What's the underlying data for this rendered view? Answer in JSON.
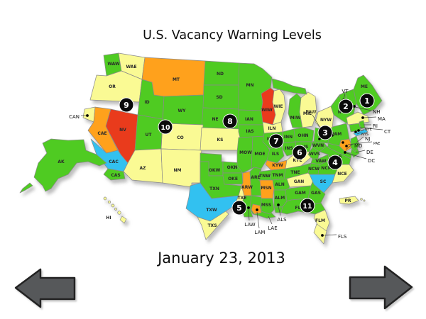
{
  "title": "U.S. Vacancy Warning Levels",
  "date": "January 23, 2013",
  "levels": {
    "green": "#4FCB20",
    "yellow": "#FAFA94",
    "orange": "#FFA11E",
    "red": "#E93A1C",
    "blue": "#33C1F0"
  },
  "map": {
    "regions": [
      {
        "code": "WAW",
        "label": "WAW",
        "level": "green"
      },
      {
        "code": "WAE",
        "label": "WAE",
        "level": "yellow"
      },
      {
        "code": "OR",
        "label": "OR",
        "level": "yellow"
      },
      {
        "code": "ID",
        "label": "ID",
        "level": "green"
      },
      {
        "code": "MT",
        "label": "MT",
        "level": "orange"
      },
      {
        "code": "WY",
        "label": "WY",
        "level": "green"
      },
      {
        "code": "ND",
        "label": "ND",
        "level": "green"
      },
      {
        "code": "SD",
        "label": "SD",
        "level": "green"
      },
      {
        "code": "NE",
        "label": "NE",
        "level": "green"
      },
      {
        "code": "CO",
        "label": "CO",
        "level": "yellow"
      },
      {
        "code": "KS",
        "label": "KS",
        "level": "yellow"
      },
      {
        "code": "NV",
        "label": "NV",
        "level": "red"
      },
      {
        "code": "UT",
        "label": "UT",
        "level": "green"
      },
      {
        "code": "CAN",
        "label": "",
        "level": "yellow"
      },
      {
        "code": "CAE",
        "label": "CAE",
        "level": "orange"
      },
      {
        "code": "CAC",
        "label": "CAC",
        "level": "blue"
      },
      {
        "code": "CAS",
        "label": "CAS",
        "level": "green"
      },
      {
        "code": "AZ",
        "label": "AZ",
        "level": "yellow"
      },
      {
        "code": "NM",
        "label": "NM",
        "level": "yellow"
      },
      {
        "code": "OKW",
        "label": "OKW",
        "level": "green"
      },
      {
        "code": "OKN",
        "label": "OKN",
        "level": "green"
      },
      {
        "code": "OKE",
        "label": "OKE",
        "level": "green"
      },
      {
        "code": "TXN",
        "label": "TXN",
        "level": "green"
      },
      {
        "code": "TXE",
        "label": "TXE",
        "level": "yellow"
      },
      {
        "code": "TXW",
        "label": "TXW",
        "level": "blue"
      },
      {
        "code": "TXS",
        "label": "TXS",
        "level": "yellow"
      },
      {
        "code": "MN",
        "label": "MN",
        "level": "green"
      },
      {
        "code": "IAN",
        "label": "IAN",
        "level": "green"
      },
      {
        "code": "IAS",
        "label": "IAS",
        "level": "green"
      },
      {
        "code": "MOW",
        "label": "MOW",
        "level": "green"
      },
      {
        "code": "MOE",
        "label": "MOE",
        "level": "green"
      },
      {
        "code": "ARW",
        "label": "ARW",
        "level": "orange"
      },
      {
        "code": "ARE",
        "label": "ARE",
        "level": "green"
      },
      {
        "code": "LAW",
        "label": "",
        "level": "green"
      },
      {
        "code": "LAE",
        "label": "",
        "level": "green"
      },
      {
        "code": "LAM",
        "label": "",
        "level": "orange"
      },
      {
        "code": "WIW",
        "label": "WIW",
        "level": "red"
      },
      {
        "code": "WIE",
        "label": "WIE",
        "level": "yellow"
      },
      {
        "code": "MIW",
        "label": "MIW",
        "level": "green"
      },
      {
        "code": "MIE",
        "label": "MIE",
        "level": "yellow"
      },
      {
        "code": "ILN",
        "label": "ILN",
        "level": "yellow"
      },
      {
        "code": "ILC",
        "label": "ILC",
        "level": "green"
      },
      {
        "code": "ILS",
        "label": "ILS",
        "level": "green"
      },
      {
        "code": "INN",
        "label": "INN",
        "level": "green"
      },
      {
        "code": "INS",
        "label": "INS",
        "level": "green"
      },
      {
        "code": "OHN",
        "label": "OHN",
        "level": "green"
      },
      {
        "code": "OHS",
        "label": "OHS",
        "level": "green"
      },
      {
        "code": "KYW",
        "label": "KYW",
        "level": "orange"
      },
      {
        "code": "KYE",
        "label": "KYE",
        "level": "yellow"
      },
      {
        "code": "TNW",
        "label": "TNW",
        "level": "green"
      },
      {
        "code": "TNM",
        "label": "TNM",
        "level": "green"
      },
      {
        "code": "TNE",
        "label": "TNE",
        "level": "green"
      },
      {
        "code": "MSN",
        "label": "MSN",
        "level": "orange"
      },
      {
        "code": "MSS",
        "label": "MSS",
        "level": "green"
      },
      {
        "code": "ALN",
        "label": "ALN",
        "level": "green"
      },
      {
        "code": "ALM",
        "label": "ALM",
        "level": "green"
      },
      {
        "code": "ALS",
        "label": "",
        "level": "green"
      },
      {
        "code": "GAN",
        "label": "GAN",
        "level": "yellow"
      },
      {
        "code": "GAM",
        "label": "GAM",
        "level": "green"
      },
      {
        "code": "GAS",
        "label": "GAS",
        "level": "green"
      },
      {
        "code": "FLN",
        "label": "FLN",
        "level": "green"
      },
      {
        "code": "FLM",
        "label": "FLM",
        "level": "yellow"
      },
      {
        "code": "FLS",
        "label": "",
        "level": "yellow"
      },
      {
        "code": "SC",
        "label": "SC",
        "level": "blue"
      },
      {
        "code": "NCW",
        "label": "NCW",
        "level": "green"
      },
      {
        "code": "NCM",
        "label": "NCM",
        "level": "green"
      },
      {
        "code": "NCE",
        "label": "NCE",
        "level": "yellow"
      },
      {
        "code": "VAW",
        "label": "VAW",
        "level": "green"
      },
      {
        "code": "VAE",
        "label": "VAE",
        "level": "green"
      },
      {
        "code": "WVN",
        "label": "WVN",
        "level": "green"
      },
      {
        "code": "WVS",
        "label": "WVS",
        "level": "green"
      },
      {
        "code": "PAW",
        "label": "",
        "level": "green"
      },
      {
        "code": "PAM",
        "label": "PAM",
        "level": "green"
      },
      {
        "code": "PAE",
        "label": "",
        "level": "orange"
      },
      {
        "code": "MD",
        "label": "",
        "level": "green"
      },
      {
        "code": "DE",
        "label": "",
        "level": "green"
      },
      {
        "code": "NJ",
        "label": "",
        "level": "green"
      },
      {
        "code": "NYW",
        "label": "NYW",
        "level": "yellow"
      },
      {
        "code": "NYN",
        "label": "NYN",
        "level": "green"
      },
      {
        "code": "NYS",
        "label": "",
        "level": "blue"
      },
      {
        "code": "VT",
        "label": "",
        "level": "green"
      },
      {
        "code": "NH",
        "label": "",
        "level": "green"
      },
      {
        "code": "ME",
        "label": "ME",
        "level": "green"
      },
      {
        "code": "MA",
        "label": "",
        "level": "yellow"
      },
      {
        "code": "CT",
        "label": "",
        "level": "green"
      },
      {
        "code": "RI",
        "label": "",
        "level": "green"
      },
      {
        "code": "AK",
        "label": "AK",
        "level": "green"
      },
      {
        "code": "HI",
        "label": "HI",
        "level": "yellow"
      },
      {
        "code": "PR",
        "label": "PR",
        "level": "yellow"
      }
    ],
    "callouts": [
      {
        "id": "CAN",
        "label": "CAN"
      },
      {
        "id": "PAW",
        "label": "PAW"
      },
      {
        "id": "VT",
        "label": "VT"
      },
      {
        "id": "NH",
        "label": "NH"
      },
      {
        "id": "MA",
        "label": "MA"
      },
      {
        "id": "RI",
        "label": "RI"
      },
      {
        "id": "CT",
        "label": "CT"
      },
      {
        "id": "NYE",
        "label": "NYE"
      },
      {
        "id": "NYS",
        "label": "NYS"
      },
      {
        "id": "NJ",
        "label": "NJ"
      },
      {
        "id": "PAE",
        "label": "PAE"
      },
      {
        "id": "MD",
        "label": "MD"
      },
      {
        "id": "DE",
        "label": "DE"
      },
      {
        "id": "DC",
        "label": "DC"
      },
      {
        "id": "LAW",
        "label": "LAW"
      },
      {
        "id": "LAM",
        "label": "LAM"
      },
      {
        "id": "LAE",
        "label": "LAE"
      },
      {
        "id": "ALS",
        "label": "ALS"
      },
      {
        "id": "FLS",
        "label": "FLS"
      }
    ],
    "markers": [
      {
        "number": "1"
      },
      {
        "number": "2"
      },
      {
        "number": "3"
      },
      {
        "number": "4"
      },
      {
        "number": "5"
      },
      {
        "number": "6"
      },
      {
        "number": "7"
      },
      {
        "number": "8"
      },
      {
        "number": "9"
      },
      {
        "number": "10"
      },
      {
        "number": "11"
      }
    ]
  },
  "nav": {
    "prev_icon": "arrow-left-icon",
    "next_icon": "arrow-right-icon"
  }
}
